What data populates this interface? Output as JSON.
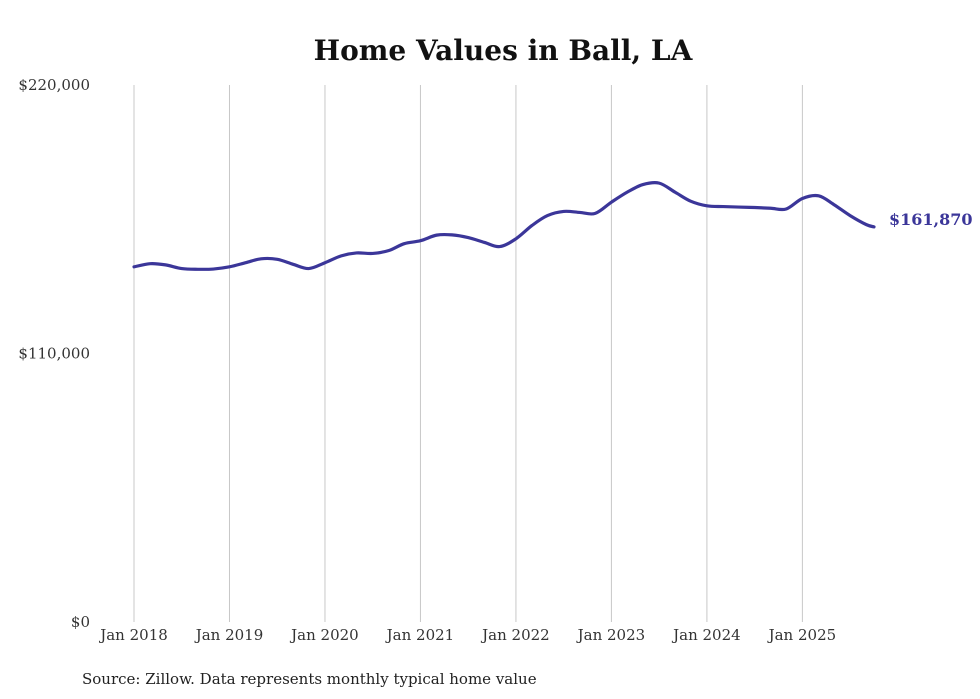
{
  "chart_data": {
    "type": "line",
    "title": "Home Values in Ball, LA",
    "source": "Source: Zillow. Data represents monthly typical home value",
    "xlabel": "",
    "ylabel": "",
    "ylim": [
      0,
      220000
    ],
    "yticks": [
      {
        "value": 220000,
        "label": "$220,000"
      },
      {
        "value": 110000,
        "label": "$110,000"
      },
      {
        "value": 0,
        "label": "$0"
      }
    ],
    "xticks": [
      {
        "value": 2018.0,
        "label": "Jan 2018"
      },
      {
        "value": 2019.0,
        "label": "Jan 2019"
      },
      {
        "value": 2020.0,
        "label": "Jan 2020"
      },
      {
        "value": 2021.0,
        "label": "Jan 2021"
      },
      {
        "value": 2022.0,
        "label": "Jan 2022"
      },
      {
        "value": 2023.0,
        "label": "Jan 2023"
      },
      {
        "value": 2024.0,
        "label": "Jan 2024"
      },
      {
        "value": 2025.0,
        "label": "Jan 2025"
      }
    ],
    "xlim": [
      2018.0,
      2025.75
    ],
    "grid": "vertical",
    "series": [
      {
        "name": "Typical home value",
        "color": "#3b3699",
        "end_label": "$161,870",
        "points": [
          [
            2018.0,
            145500
          ],
          [
            2018.17,
            146800
          ],
          [
            2018.33,
            146300
          ],
          [
            2018.5,
            144800
          ],
          [
            2018.67,
            144500
          ],
          [
            2018.83,
            144600
          ],
          [
            2019.0,
            145500
          ],
          [
            2019.17,
            147200
          ],
          [
            2019.33,
            148800
          ],
          [
            2019.5,
            148600
          ],
          [
            2019.67,
            146500
          ],
          [
            2019.83,
            144800
          ],
          [
            2020.0,
            147200
          ],
          [
            2020.17,
            150000
          ],
          [
            2020.33,
            151200
          ],
          [
            2020.5,
            151000
          ],
          [
            2020.67,
            152200
          ],
          [
            2020.83,
            155000
          ],
          [
            2021.0,
            156200
          ],
          [
            2021.17,
            158500
          ],
          [
            2021.33,
            158600
          ],
          [
            2021.5,
            157500
          ],
          [
            2021.67,
            155500
          ],
          [
            2021.83,
            153800
          ],
          [
            2022.0,
            157000
          ],
          [
            2022.17,
            162500
          ],
          [
            2022.33,
            166500
          ],
          [
            2022.5,
            168200
          ],
          [
            2022.67,
            167800
          ],
          [
            2022.83,
            167400
          ],
          [
            2023.0,
            172000
          ],
          [
            2023.17,
            176200
          ],
          [
            2023.33,
            179200
          ],
          [
            2023.5,
            179800
          ],
          [
            2023.67,
            176000
          ],
          [
            2023.83,
            172400
          ],
          [
            2024.0,
            170500
          ],
          [
            2024.17,
            170200
          ],
          [
            2024.33,
            170000
          ],
          [
            2024.5,
            169800
          ],
          [
            2024.67,
            169500
          ],
          [
            2024.83,
            169200
          ],
          [
            2025.0,
            173500
          ],
          [
            2025.17,
            174600
          ],
          [
            2025.33,
            171000
          ],
          [
            2025.5,
            166500
          ],
          [
            2025.67,
            162800
          ],
          [
            2025.75,
            161870
          ]
        ]
      }
    ]
  }
}
